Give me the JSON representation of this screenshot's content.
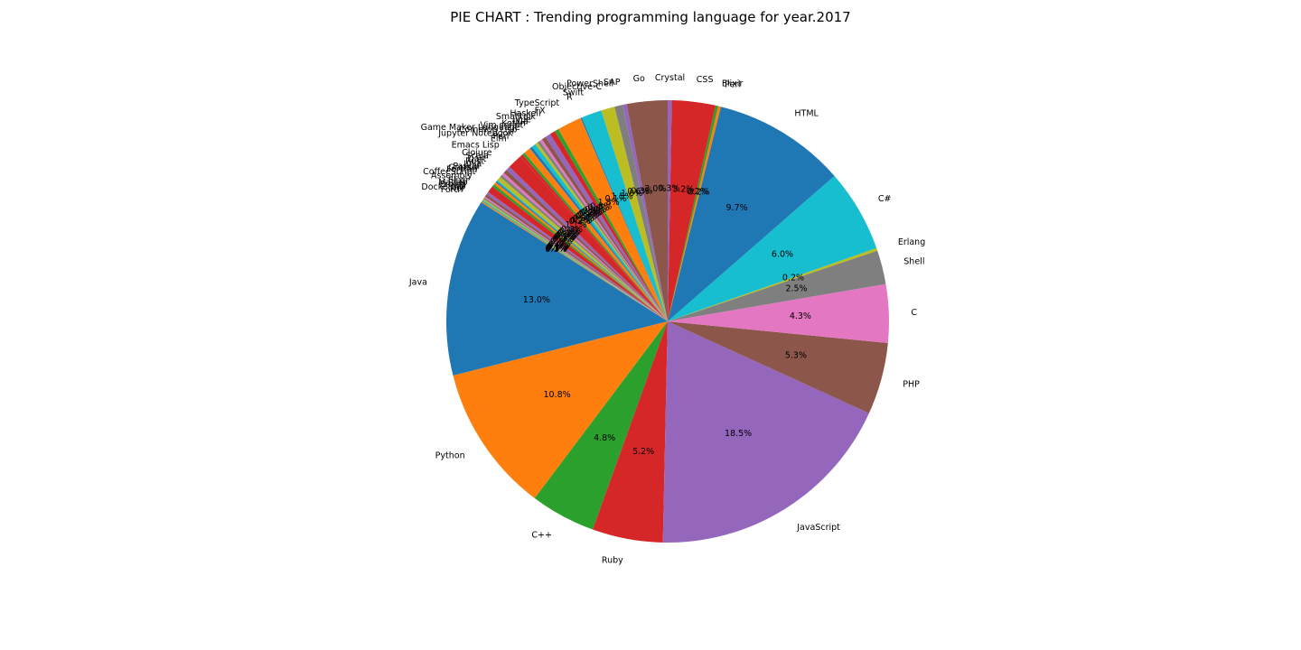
{
  "chart_data": {
    "type": "pie",
    "title": "PIE CHART : Trending programming language for year.2017",
    "start_angle_deg": 90,
    "counterclockwise": true,
    "slices": [
      {
        "label": "Go",
        "value": 3.0,
        "color": "#8c564b"
      },
      {
        "label": "SAP",
        "value": 0.3,
        "color": "#9467bd"
      },
      {
        "label": "PowerShell",
        "value": 0.6,
        "color": "#7f7f7f"
      },
      {
        "label": "Objective-C",
        "value": 1.0,
        "color": "#bcbd22"
      },
      {
        "label": "Swift",
        "value": 1.5,
        "color": "#17becf"
      },
      {
        "label": "R",
        "value": 0.1,
        "color": "#1f77b4"
      },
      {
        "label": "TypeScript",
        "value": 1.8,
        "color": "#ff7f0e"
      },
      {
        "label": "FX",
        "value": 0.3,
        "color": "#2ca02c"
      },
      {
        "label": "Haskell",
        "value": 0.4,
        "color": "#d62728"
      },
      {
        "label": "Smalltalk",
        "value": 0.4,
        "color": "#9467bd"
      },
      {
        "label": "Vue",
        "value": 0.3,
        "color": "#8c564b"
      },
      {
        "label": "Lua",
        "value": 0.2,
        "color": "#e377c2"
      },
      {
        "label": "Kotlin",
        "value": 0.2,
        "color": "#7f7f7f"
      },
      {
        "label": "Vim script",
        "value": 0.2,
        "color": "#bcbd22"
      },
      {
        "label": "Game Maker Language",
        "value": 0.3,
        "color": "#17becf"
      },
      {
        "label": "Common Lisp",
        "value": 0.2,
        "color": "#1f77b4"
      },
      {
        "label": "Jupyter Notebook",
        "value": 0.5,
        "color": "#ff7f0e"
      },
      {
        "label": "Perl",
        "value": 0.2,
        "color": "#2ca02c"
      },
      {
        "label": "Elm",
        "value": 0.2,
        "color": "#d62728"
      },
      {
        "label": "Emacs Lisp",
        "value": 1.1,
        "color": "#d62728"
      },
      {
        "label": "Clojure",
        "value": 0.3,
        "color": "#9467bd"
      },
      {
        "label": "Scala",
        "value": 0.3,
        "color": "#8c564b"
      },
      {
        "label": "Dart",
        "value": 0.2,
        "color": "#e377c2"
      },
      {
        "label": "Rust",
        "value": 0.2,
        "color": "#7f7f7f"
      },
      {
        "label": "Julia",
        "value": 0.3,
        "color": "#bcbd22"
      },
      {
        "label": "Pascal",
        "value": 0.1,
        "color": "#17becf"
      },
      {
        "label": "Groovy",
        "value": 0.1,
        "color": "#1f77b4"
      },
      {
        "label": "Fortran",
        "value": 0.2,
        "color": "#ff7f0e"
      },
      {
        "label": "CoffeeScript",
        "value": 0.2,
        "color": "#2ca02c"
      },
      {
        "label": "Assembly",
        "value": 0.5,
        "color": "#d62728"
      },
      {
        "label": "Elixir",
        "value": 0.2,
        "color": "#9467bd"
      },
      {
        "label": "Matlab",
        "value": 0.2,
        "color": "#8c564b"
      },
      {
        "label": "Prolog",
        "value": 0.1,
        "color": "#e377c2"
      },
      {
        "label": "D",
        "value": 0.1,
        "color": "#7f7f7f"
      },
      {
        "label": "Dockerfile",
        "value": 0.1,
        "color": "#bcbd22"
      },
      {
        "label": "Nix",
        "value": 0.1,
        "color": "#17becf"
      },
      {
        "label": "Forth",
        "value": 0.1,
        "color": "#ff7f0e"
      },
      {
        "label": "Java",
        "value": 13.1,
        "color": "#1f77b4"
      },
      {
        "label": "Python",
        "value": 10.9,
        "color": "#ff7f0e"
      },
      {
        "label": "C++",
        "value": 4.8,
        "color": "#2ca02c"
      },
      {
        "label": "Ruby",
        "value": 5.2,
        "color": "#d62728"
      },
      {
        "label": "JavaScript",
        "value": 18.7,
        "color": "#9467bd"
      },
      {
        "label": "PHP",
        "value": 5.3,
        "color": "#8c564b"
      },
      {
        "label": "C",
        "value": 4.3,
        "color": "#e377c2"
      },
      {
        "label": "Shell",
        "value": 2.5,
        "color": "#7f7f7f"
      },
      {
        "label": "Erlang",
        "value": 0.2,
        "color": "#bcbd22"
      },
      {
        "label": "C#",
        "value": 6.1,
        "color": "#17becf"
      },
      {
        "label": "HTML",
        "value": 9.8,
        "color": "#1f77b4"
      },
      {
        "label": "Perl",
        "value": 0.2,
        "color": "#ff7f0e"
      },
      {
        "label": "Elixir",
        "value": 0.2,
        "color": "#2ca02c"
      },
      {
        "label": "CSS",
        "value": 3.2,
        "color": "#d62728"
      },
      {
        "label": "Crystal",
        "value": 0.3,
        "color": "#9467bd"
      }
    ],
    "legend": "none"
  }
}
